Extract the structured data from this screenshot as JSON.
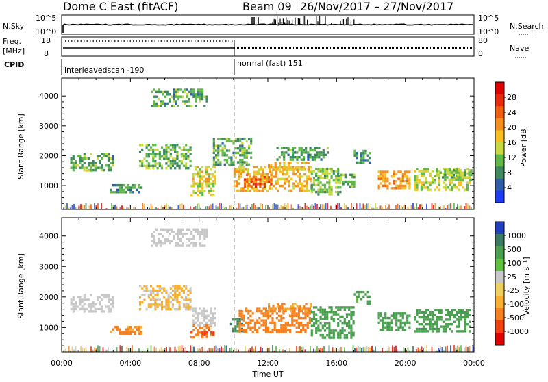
{
  "header": {
    "station": "Dome C East (fitACF)",
    "beam": "Beam 09",
    "dates": "26/Nov/2017 – 27/Nov/2017"
  },
  "status_panels": {
    "nsky": {
      "label": "N.Sky",
      "right_label": "N.Search",
      "ticks_left": [
        "10^5",
        "10^0"
      ],
      "ticks_right": [
        "10^5",
        "10^0"
      ]
    },
    "freq": {
      "label_line1": "Freq.",
      "label_line2": "[MHz]",
      "right_label": "Nave",
      "ticks_left": [
        "18",
        "8"
      ],
      "ticks_right": [
        "80",
        "0"
      ]
    },
    "cpid": {
      "label": "CPID",
      "segments": [
        {
          "name": "interleavedscan -190",
          "start_hour": 0,
          "end_hour": 10
        },
        {
          "name": "normal (fast) 151",
          "start_hour": 10,
          "end_hour": 24
        }
      ]
    }
  },
  "colors": {
    "power_scale": [
      "#1f3cf5",
      "#2e5fa8",
      "#3c8a5e",
      "#5fb84a",
      "#c8d840",
      "#f5c020",
      "#f59020",
      "#f06010",
      "#e82a10",
      "#e00000"
    ],
    "velocity_scale": [
      "#e00000",
      "#f04010",
      "#f58020",
      "#f5b030",
      "#f0d060",
      "#c8c8c8",
      "#60c040",
      "#4aa050",
      "#3a7a60",
      "#2040c0"
    ]
  },
  "chart_data": [
    {
      "type": "heatmap",
      "name": "power",
      "ylabel": "Slant Range [km]",
      "y_ticks": [
        1000,
        2000,
        3000,
        4000
      ],
      "ylim": [
        200,
        4600
      ],
      "xlim": [
        0,
        24
      ],
      "colorbar_label": "Power [dB]",
      "colorbar_ticks": [
        "4",
        "8",
        "12",
        "16",
        "20",
        "24",
        "28"
      ],
      "colorbar_range": [
        0,
        32
      ],
      "regions": [
        {
          "t0": 0.5,
          "t1": 3.0,
          "r0": 1500,
          "r1": 2100,
          "v": 10
        },
        {
          "t0": 1.4,
          "t1": 2.0,
          "r0": 1500,
          "r1": 1700,
          "v": 14
        },
        {
          "t0": 2.8,
          "t1": 4.6,
          "r0": 750,
          "r1": 1050,
          "v": 9
        },
        {
          "t0": 4.5,
          "t1": 7.5,
          "r0": 1600,
          "r1": 2400,
          "v": 11
        },
        {
          "t0": 7.5,
          "t1": 8.8,
          "r0": 700,
          "r1": 1100,
          "v": 14
        },
        {
          "t0": 7.6,
          "t1": 9.0,
          "r0": 1100,
          "r1": 1650,
          "v": 16
        },
        {
          "t0": 5.2,
          "t1": 8.5,
          "r0": 3700,
          "r1": 4250,
          "v": 10
        },
        {
          "t0": 8.8,
          "t1": 11.0,
          "r0": 1700,
          "r1": 2600,
          "v": 10
        },
        {
          "t0": 10.0,
          "t1": 14.5,
          "r0": 850,
          "r1": 1650,
          "v": 18
        },
        {
          "t0": 10.6,
          "t1": 12.2,
          "r0": 950,
          "r1": 1400,
          "v": 24
        },
        {
          "t0": 12.0,
          "t1": 14.5,
          "r0": 1500,
          "r1": 1800,
          "v": 18
        },
        {
          "t0": 12.5,
          "t1": 15.5,
          "r0": 1900,
          "r1": 2300,
          "v": 9
        },
        {
          "t0": 14.5,
          "t1": 16.2,
          "r0": 700,
          "r1": 1600,
          "v": 12
        },
        {
          "t0": 16.2,
          "t1": 17.0,
          "r0": 1000,
          "r1": 1400,
          "v": 10
        },
        {
          "t0": 17.0,
          "t1": 18.0,
          "r0": 1800,
          "r1": 2200,
          "v": 9
        },
        {
          "t0": 18.4,
          "t1": 20.2,
          "r0": 900,
          "r1": 1500,
          "v": 20
        },
        {
          "t0": 20.5,
          "t1": 23.8,
          "r0": 850,
          "r1": 1600,
          "v": 14
        },
        {
          "t0": 22.0,
          "t1": 23.8,
          "r0": 1200,
          "r1": 1550,
          "v": 11
        }
      ]
    },
    {
      "type": "heatmap",
      "name": "velocity",
      "ylabel": "Slant Range [km]",
      "xlabel": "Time UT",
      "x_ticks": [
        "00:00",
        "04:00",
        "08:00",
        "12:00",
        "16:00",
        "20:00",
        "00:00"
      ],
      "y_ticks": [
        1000,
        2000,
        3000,
        4000
      ],
      "ylim": [
        200,
        4600
      ],
      "xlim": [
        0,
        24
      ],
      "colorbar_label": "Velocity [m s⁻¹]",
      "colorbar_ticks": [
        "-1000",
        "-500",
        "-100",
        "-25",
        "25",
        "100",
        "500",
        "1000"
      ],
      "regions": [
        {
          "t0": 0.5,
          "t1": 3.0,
          "r0": 1500,
          "r1": 2100,
          "v": 0
        },
        {
          "t0": 2.8,
          "t1": 4.6,
          "r0": 750,
          "r1": 1050,
          "v": -150
        },
        {
          "t0": 4.5,
          "t1": 7.5,
          "r0": 1600,
          "r1": 2400,
          "v": -40
        },
        {
          "t0": 7.5,
          "t1": 8.8,
          "r0": 700,
          "r1": 1100,
          "v": -400
        },
        {
          "t0": 7.6,
          "t1": 9.0,
          "r0": 1100,
          "r1": 1650,
          "v": 0
        },
        {
          "t0": 5.2,
          "t1": 8.5,
          "r0": 3700,
          "r1": 4250,
          "v": 0
        },
        {
          "t0": 9.8,
          "t1": 10.5,
          "r0": 900,
          "r1": 1300,
          "v": 600
        },
        {
          "t0": 10.3,
          "t1": 14.5,
          "r0": 850,
          "r1": 1650,
          "v": -300
        },
        {
          "t0": 12.0,
          "t1": 14.5,
          "r0": 1500,
          "r1": 1800,
          "v": -120
        },
        {
          "t0": 14.5,
          "t1": 17.0,
          "r0": 700,
          "r1": 1700,
          "v": 200
        },
        {
          "t0": 17.0,
          "t1": 18.0,
          "r0": 1800,
          "r1": 2200,
          "v": 150
        },
        {
          "t0": 18.4,
          "t1": 20.2,
          "r0": 900,
          "r1": 1500,
          "v": 250
        },
        {
          "t0": 20.5,
          "t1": 23.8,
          "r0": 850,
          "r1": 1600,
          "v": 220
        }
      ]
    }
  ]
}
